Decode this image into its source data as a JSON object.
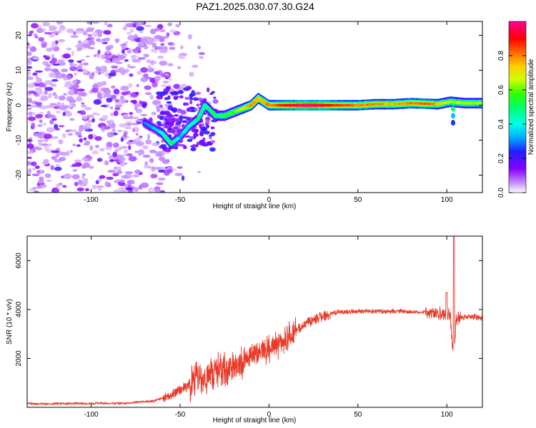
{
  "title": "PAZ1.2025.030.07.30.G24",
  "chart_data": [
    {
      "type": "heatmap",
      "xlabel": "Height of straight line (km)",
      "ylabel": "Frequency (Hz)",
      "xlim": [
        -136,
        120
      ],
      "ylim": [
        -25,
        24
      ],
      "xticks": [
        -100,
        -50,
        0,
        50,
        100
      ],
      "yticks": [
        -20,
        -10,
        0,
        10,
        20
      ],
      "colorbar": {
        "label": "Normalized spectral amplitude",
        "range": [
          0,
          1
        ],
        "ticks": [
          0.0,
          0.2,
          0.4,
          0.6,
          0.8
        ],
        "colormap": [
          "#ffffff",
          "#e6ccff",
          "#b266ff",
          "#7f00ff",
          "#2222ff",
          "#00aaff",
          "#00ffff",
          "#00ff88",
          "#44ff00",
          "#ccff00",
          "#ffcc00",
          "#ff6600",
          "#ff0000",
          "#ff0066",
          "#ff0099"
        ]
      },
      "ridge": [
        {
          "x": -70,
          "y": -5,
          "a": 0.25
        },
        {
          "x": -60,
          "y": -8,
          "a": 0.35
        },
        {
          "x": -55,
          "y": -11,
          "a": 0.45
        },
        {
          "x": -50,
          "y": -9,
          "a": 0.3
        },
        {
          "x": -45,
          "y": -6,
          "a": 0.35
        },
        {
          "x": -40,
          "y": -4,
          "a": 0.4
        },
        {
          "x": -36,
          "y": 0,
          "a": 0.4
        },
        {
          "x": -30,
          "y": -3,
          "a": 0.45
        },
        {
          "x": -25,
          "y": -3,
          "a": 0.5
        },
        {
          "x": -20,
          "y": -2,
          "a": 0.55
        },
        {
          "x": -15,
          "y": -1,
          "a": 0.6
        },
        {
          "x": -10,
          "y": 0,
          "a": 0.75
        },
        {
          "x": -6,
          "y": 2,
          "a": 0.7
        },
        {
          "x": 0,
          "y": 0,
          "a": 0.75
        },
        {
          "x": 10,
          "y": 0,
          "a": 0.85
        },
        {
          "x": 20,
          "y": 0,
          "a": 0.95
        },
        {
          "x": 30,
          "y": 0,
          "a": 0.9
        },
        {
          "x": 40,
          "y": 0,
          "a": 0.8
        },
        {
          "x": 50,
          "y": 0,
          "a": 0.75
        },
        {
          "x": 60,
          "y": 0.3,
          "a": 0.75
        },
        {
          "x": 70,
          "y": 0.3,
          "a": 0.7
        },
        {
          "x": 80,
          "y": 0.6,
          "a": 0.75
        },
        {
          "x": 90,
          "y": 0.4,
          "a": 0.8
        },
        {
          "x": 95,
          "y": 0.3,
          "a": 0.7
        },
        {
          "x": 102,
          "y": 1.0,
          "a": 0.6
        },
        {
          "x": 110,
          "y": 0.6,
          "a": 0.6
        },
        {
          "x": 120,
          "y": 0.6,
          "a": 0.6
        }
      ]
    },
    {
      "type": "line",
      "xlabel": "Height of straight line (km)",
      "ylabel": "SNR (10 * v/v)",
      "xlim": [
        -136,
        120
      ],
      "ylim": [
        0,
        7000
      ],
      "xticks": [
        -100,
        -50,
        0,
        50,
        100
      ],
      "yticks": [
        2000,
        4000,
        6000
      ],
      "color": "#e83a2a",
      "series": [
        {
          "x": [
            -136,
            -120,
            -100,
            -80,
            -65,
            -55,
            -50,
            -45,
            -40,
            -35,
            -30,
            -25,
            -20,
            -15,
            -10,
            -5,
            0,
            5,
            10,
            15,
            20,
            25,
            30,
            35,
            40,
            45,
            50,
            55,
            60,
            65,
            70,
            75,
            80,
            85,
            90,
            95,
            100,
            102,
            103,
            104,
            105,
            106,
            110,
            115,
            120
          ],
          "y": [
            150,
            150,
            160,
            170,
            260,
            500,
            700,
            900,
            1100,
            1200,
            1400,
            1500,
            1700,
            1900,
            2100,
            2300,
            2400,
            2600,
            2800,
            3100,
            3400,
            3600,
            3750,
            3850,
            3900,
            3900,
            3920,
            3920,
            3930,
            3920,
            3930,
            3920,
            3900,
            3880,
            3900,
            3850,
            3800,
            3700,
            2600,
            2300,
            3400,
            3650,
            3700,
            3700,
            3650
          ]
        }
      ]
    }
  ]
}
